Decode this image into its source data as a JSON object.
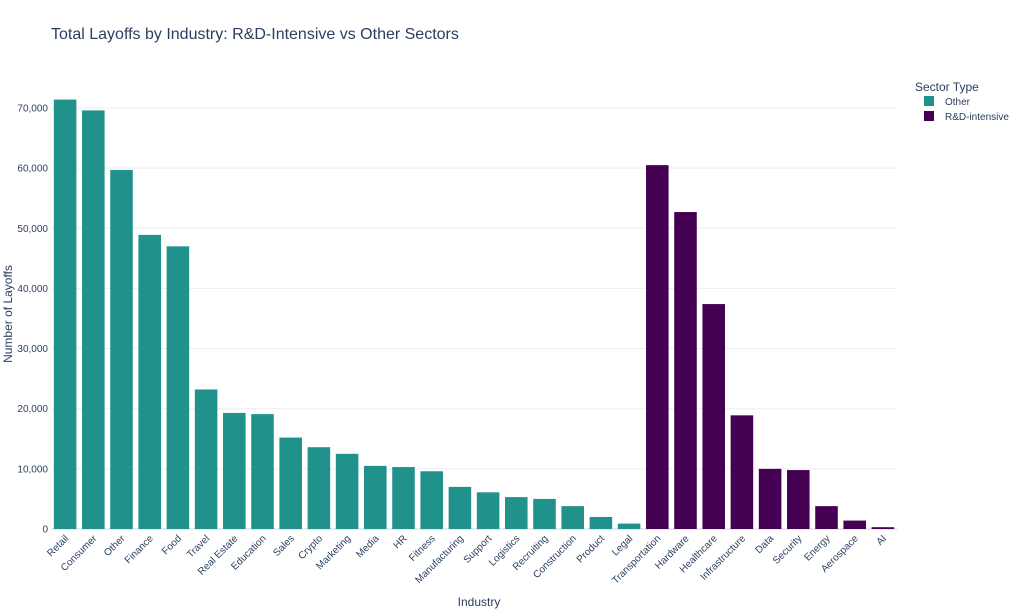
{
  "chart_data": {
    "type": "bar",
    "title": "Total Layoffs by Industry: R&D-Intensive vs Other Sectors",
    "xlabel": "Industry",
    "ylabel": "Number of Layoffs",
    "ylim": [
      0,
      75000
    ],
    "yticks": [
      0,
      10000,
      20000,
      30000,
      40000,
      50000,
      60000,
      70000
    ],
    "ytick_labels": [
      "0",
      "10,000",
      "20,000",
      "30,000",
      "40,000",
      "50,000",
      "60,000",
      "70,000"
    ],
    "grid": true,
    "legend": {
      "title": "Sector Type",
      "placement": "top-right"
    },
    "series": [
      {
        "name": "Other",
        "color": "#21918c",
        "categories": [
          "Retail",
          "Consumer",
          "Other",
          "Finance",
          "Food",
          "Travel",
          "Real Estate",
          "Education",
          "Sales",
          "Crypto",
          "Marketing",
          "Media",
          "HR",
          "Fitness",
          "Manufacturing",
          "Support",
          "Logistics",
          "Recruiting",
          "Construction",
          "Product",
          "Legal"
        ],
        "values": [
          71400,
          69600,
          59700,
          48900,
          47000,
          23200,
          19300,
          19100,
          15200,
          13600,
          12500,
          10500,
          10300,
          9600,
          7000,
          6100,
          5300,
          5000,
          3800,
          2000,
          900
        ]
      },
      {
        "name": "R&D-intensive",
        "color": "#440154",
        "categories": [
          "Transportation",
          "Hardware",
          "Healthcare",
          "Infrastructure",
          "Data",
          "Security",
          "Energy",
          "Aerospace",
          "AI"
        ],
        "values": [
          60500,
          52700,
          37400,
          18900,
          10000,
          9800,
          3800,
          1400,
          300
        ]
      }
    ]
  }
}
